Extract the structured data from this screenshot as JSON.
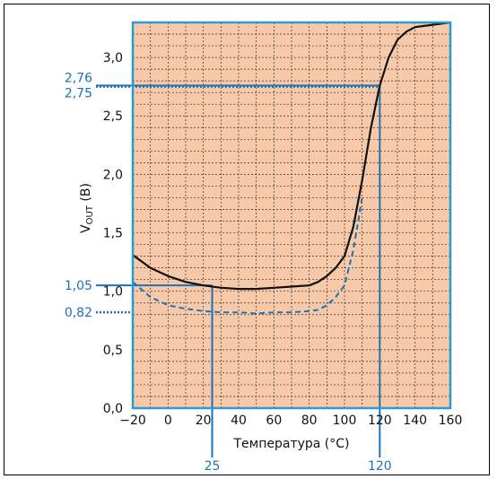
{
  "chart_data": {
    "type": "line",
    "xlabel": "Температура (°C)",
    "ylabel_main": "V",
    "ylabel_sub": "OUT",
    "ylabel_unit": " (B)",
    "xlim": [
      -20,
      160
    ],
    "ylim": [
      0,
      3.3
    ],
    "x_ticks": [
      "−20",
      "0",
      "20",
      "40",
      "60",
      "80",
      "100",
      "120",
      "140",
      "160"
    ],
    "y_ticks": [
      "0,0",
      "0,5",
      "1,0",
      "1,5",
      "2,0",
      "2,5",
      "3,0"
    ],
    "grid": true,
    "background": "#f7c9a8",
    "series": [
      {
        "style": "solid",
        "color": "#111111",
        "x": [
          -20,
          -10,
          0,
          10,
          20,
          30,
          40,
          50,
          60,
          70,
          80,
          85,
          90,
          95,
          100,
          105,
          110,
          115,
          120,
          125,
          130,
          135,
          140,
          150,
          160
        ],
        "y": [
          1.31,
          1.2,
          1.13,
          1.08,
          1.05,
          1.03,
          1.02,
          1.02,
          1.03,
          1.04,
          1.05,
          1.08,
          1.13,
          1.2,
          1.3,
          1.55,
          1.95,
          2.4,
          2.76,
          3.0,
          3.15,
          3.22,
          3.26,
          3.28,
          3.3
        ]
      },
      {
        "style": "dashed",
        "color": "#1a73b8",
        "x": [
          -20,
          -10,
          0,
          10,
          20,
          30,
          40,
          50,
          60,
          70,
          80,
          85,
          90,
          95,
          100,
          105,
          110
        ],
        "y": [
          1.08,
          0.95,
          0.88,
          0.85,
          0.83,
          0.82,
          0.82,
          0.81,
          0.82,
          0.82,
          0.83,
          0.84,
          0.88,
          0.95,
          1.05,
          1.35,
          1.8
        ]
      }
    ],
    "annotations": {
      "x_markers": [
        {
          "x": 25,
          "label": "25"
        },
        {
          "x": 120,
          "label": "120"
        }
      ],
      "y_markers": [
        {
          "y": 2.76,
          "label": "2,76",
          "style": "solid"
        },
        {
          "y": 2.75,
          "label": "2,75",
          "style": "dotted"
        },
        {
          "y": 1.05,
          "label": "1,05",
          "style": "solid"
        },
        {
          "y": 0.82,
          "label": "0,82",
          "style": "dotted"
        }
      ]
    },
    "colors": {
      "accent": "#1a73b8",
      "grid": "#333333",
      "axis_box": "#2a9bd6"
    }
  }
}
